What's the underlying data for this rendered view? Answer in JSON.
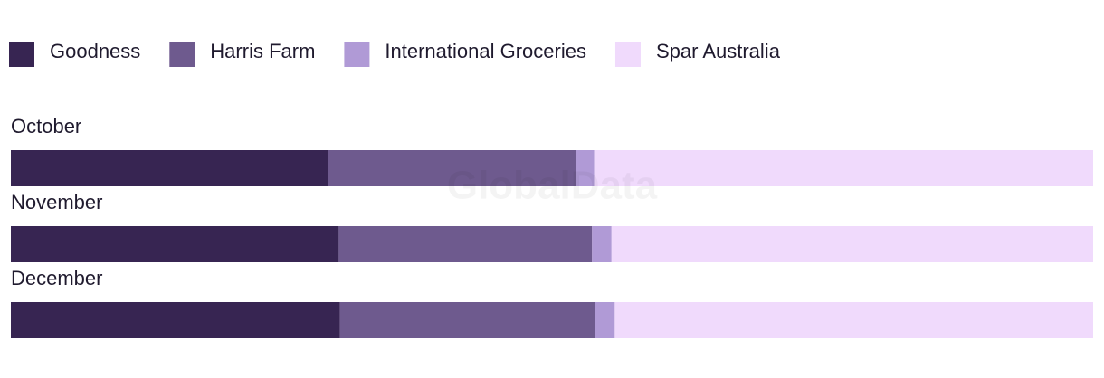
{
  "chart_data": {
    "type": "stacked-bar-horizontal",
    "watermark": "GlobalData",
    "categories": [
      "October",
      "November",
      "December"
    ],
    "series": [
      {
        "name": "Goodness",
        "color": "#372552",
        "values": [
          29.3,
          30.3,
          30.4
        ]
      },
      {
        "name": "Harris Farm",
        "color": "#6e5a8e",
        "values": [
          22.9,
          23.4,
          23.6
        ]
      },
      {
        "name": "International Groceries",
        "color": "#b09ad6",
        "values": [
          1.7,
          1.8,
          1.8
        ]
      },
      {
        "name": "Spar Australia",
        "color": "#f0dafc",
        "values": [
          46.1,
          44.5,
          44.2
        ]
      }
    ]
  }
}
